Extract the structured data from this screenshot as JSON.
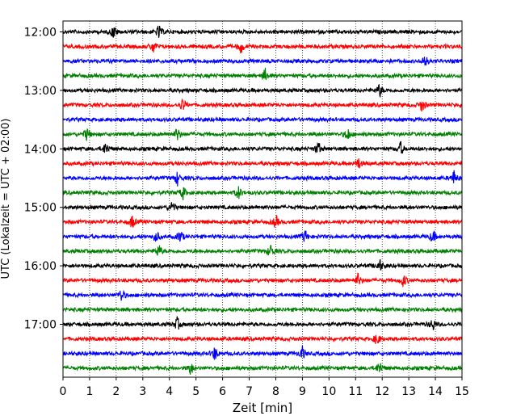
{
  "chart_data": {
    "type": "line",
    "title": "",
    "xlabel": "Zeit  [min]",
    "ylabel": "UTC (Lokalzeit = UTC + 02:00)",
    "xlim": [
      0,
      15
    ],
    "x_ticks": [
      "0",
      "1",
      "2",
      "3",
      "4",
      "5",
      "6",
      "7",
      "8",
      "9",
      "10",
      "11",
      "12",
      "13",
      "14",
      "15"
    ],
    "y_ticks": [
      "12:00",
      "13:00",
      "14:00",
      "15:00",
      "16:00",
      "17:00"
    ],
    "grid": "vertical dotted lines at each minute",
    "trace_interval_minutes": 15,
    "trace_colors": [
      "#000000",
      "#ff0000",
      "#0000ff",
      "#008000"
    ],
    "series": [
      {
        "start": "12:00",
        "color": "#000000",
        "events_min": [
          1.9,
          3.6
        ]
      },
      {
        "start": "12:15",
        "color": "#ff0000",
        "events_min": [
          3.4,
          6.7
        ]
      },
      {
        "start": "12:30",
        "color": "#0000ff",
        "events_min": [
          13.6
        ]
      },
      {
        "start": "12:45",
        "color": "#008000",
        "events_min": [
          7.6
        ]
      },
      {
        "start": "13:00",
        "color": "#000000",
        "events_min": [
          11.9
        ]
      },
      {
        "start": "13:15",
        "color": "#ff0000",
        "events_min": [
          4.5,
          13.5
        ]
      },
      {
        "start": "13:30",
        "color": "#0000ff",
        "events_min": []
      },
      {
        "start": "13:45",
        "color": "#008000",
        "events_min": [
          0.9,
          4.3,
          10.7
        ]
      },
      {
        "start": "14:00",
        "color": "#000000",
        "events_min": [
          1.6,
          9.6,
          12.7
        ]
      },
      {
        "start": "14:15",
        "color": "#ff0000",
        "events_min": [
          11.1
        ]
      },
      {
        "start": "14:30",
        "color": "#0000ff",
        "events_min": [
          4.3,
          14.7
        ]
      },
      {
        "start": "14:45",
        "color": "#008000",
        "events_min": [
          4.5,
          6.6
        ]
      },
      {
        "start": "15:00",
        "color": "#000000",
        "events_min": [
          4.1
        ]
      },
      {
        "start": "15:15",
        "color": "#ff0000",
        "events_min": [
          2.6,
          8.0
        ]
      },
      {
        "start": "15:30",
        "color": "#0000ff",
        "events_min": [
          3.5,
          4.4,
          9.1,
          13.9
        ]
      },
      {
        "start": "15:45",
        "color": "#008000",
        "events_min": [
          3.6,
          7.8
        ]
      },
      {
        "start": "16:00",
        "color": "#000000",
        "events_min": [
          11.9
        ]
      },
      {
        "start": "16:15",
        "color": "#ff0000",
        "events_min": [
          11.1,
          12.8
        ]
      },
      {
        "start": "16:30",
        "color": "#0000ff",
        "events_min": [
          2.2
        ]
      },
      {
        "start": "16:45",
        "color": "#008000",
        "events_min": []
      },
      {
        "start": "17:00",
        "color": "#000000",
        "events_min": [
          4.3,
          13.9
        ]
      },
      {
        "start": "17:15",
        "color": "#ff0000",
        "events_min": [
          11.8
        ]
      },
      {
        "start": "17:30",
        "color": "#0000ff",
        "events_min": [
          5.7,
          9.0
        ]
      },
      {
        "start": "17:45",
        "color": "#008000",
        "events_min": [
          4.8,
          11.9
        ]
      }
    ]
  }
}
